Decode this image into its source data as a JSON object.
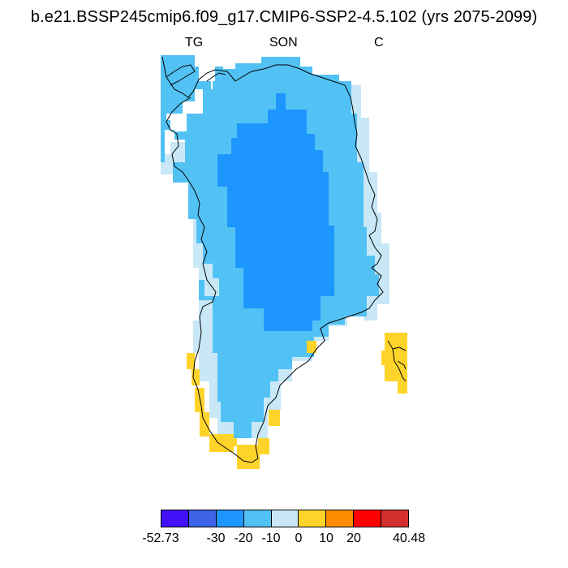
{
  "title": "b.e21.BSSP245cmip6.f09_g17.CMIP6-SSP2-4.5.102 (yrs 2075-2099)",
  "subtitles": {
    "left": "TG",
    "center": "SON",
    "right": "C"
  },
  "map": {
    "region": "Greenland",
    "colors": {
      "c_lt_m10": "#1E96FF",
      "c_m10_m0": "#52C2F5",
      "c_0_m10": "#C8E8F8",
      "c_0_10": "#FFD42A",
      "coast": "#000000"
    }
  },
  "colorbar": {
    "colors": [
      "#4311FA",
      "#3D64E6",
      "#1E96FF",
      "#52C2F5",
      "#C8E8F8",
      "#FFD42A",
      "#FF8C00",
      "#FF0000",
      "#D42F2F"
    ],
    "labels": [
      "-52.73",
      "-30",
      "-20",
      "-10",
      "0",
      "10",
      "20",
      "40.48"
    ]
  }
}
